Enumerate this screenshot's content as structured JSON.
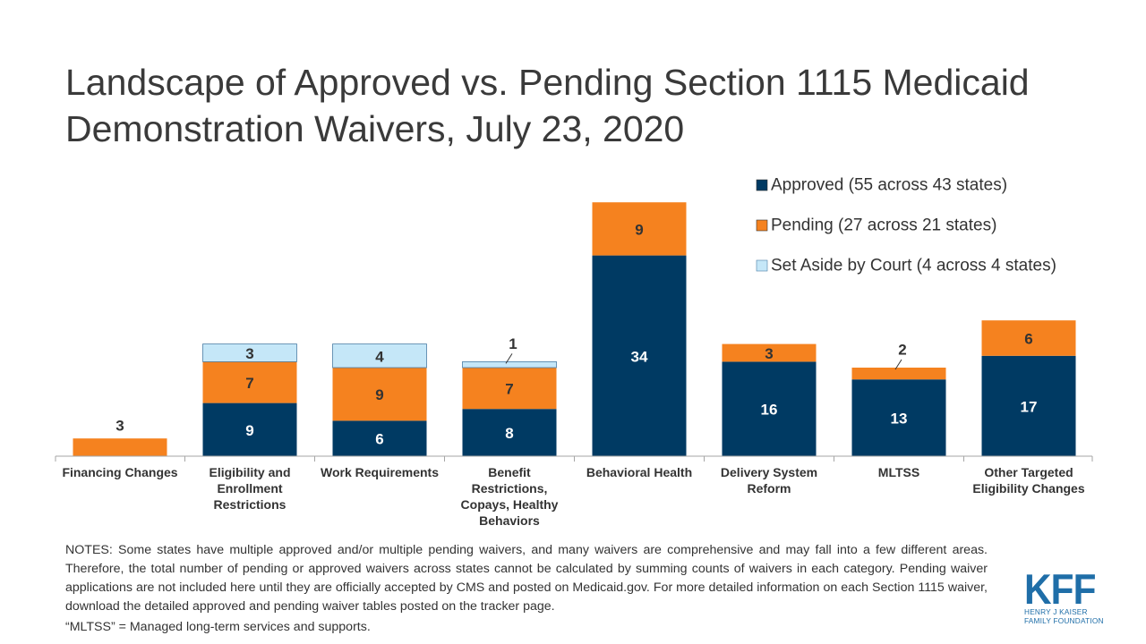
{
  "title": {
    "line1": "Landscape of Approved vs. Pending Section 1115 Medicaid",
    "line2": "Demonstration Waivers, July 23, 2020"
  },
  "chart_data": {
    "type": "bar",
    "stacked": true,
    "categories": [
      [
        "Financing Changes"
      ],
      [
        "Eligibility and",
        "Enrollment",
        "Restrictions"
      ],
      [
        "Work Requirements"
      ],
      [
        "Benefit",
        "Restrictions,",
        "Copays, Healthy",
        "Behaviors"
      ],
      [
        "Behavioral Health"
      ],
      [
        "Delivery System",
        "Reform"
      ],
      [
        "MLTSS"
      ],
      [
        "Other Targeted",
        "Eligibility Changes"
      ]
    ],
    "series": [
      {
        "name": "Approved (55 across 43 states)",
        "color": "#003a63",
        "label_color": "#ffffff",
        "values": [
          0,
          9,
          6,
          8,
          34,
          16,
          13,
          17
        ]
      },
      {
        "name": "Pending (27 across 21 states)",
        "color": "#f5821f",
        "label_color": "#333333",
        "values": [
          3,
          7,
          9,
          7,
          9,
          3,
          2,
          6
        ]
      },
      {
        "name": "Set Aside by Court (4 across 4 states)",
        "color": "#c5e7f8",
        "label_color": "#333333",
        "values": [
          0,
          3,
          4,
          1,
          0,
          0,
          0,
          0
        ]
      }
    ],
    "callouts": [
      {
        "category_index": 3,
        "series_index": 2
      },
      {
        "category_index": 6,
        "series_index": 1
      }
    ],
    "legend_position": "top-right",
    "grid": false,
    "ylim": [
      0,
      48
    ]
  },
  "notes": {
    "text": "NOTES: Some states have multiple approved and/or multiple pending waivers, and many waivers are comprehensive and may fall into a few different areas. Therefore, the total number of pending or approved waivers across states cannot be calculated by summing counts of waivers in each category. Pending waiver applications are not included here until they are officially accepted by CMS and posted on Medicaid.gov. For more detailed information on each Section 1115 waiver, download the detailed approved and pending waiver tables posted on the tracker page.",
    "definition": "“MLTSS” = Managed long-term services and supports."
  },
  "logo": {
    "mark": "KFF",
    "line1": "HENRY J KAISER",
    "line2": "FAMILY FOUNDATION",
    "color": "#1f6ea8"
  }
}
